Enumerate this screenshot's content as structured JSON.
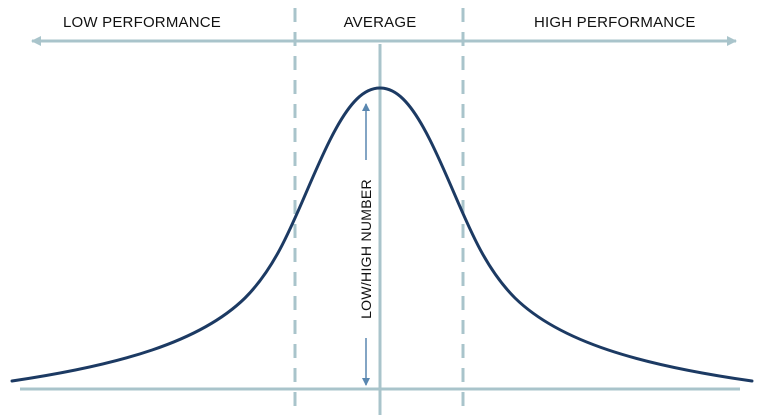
{
  "labels": {
    "low": "LOW PERFORMANCE",
    "average": "AVERAGE",
    "high": "HIGH PERFORMANCE",
    "vertical": "LOW/HIGH NUMBER"
  },
  "colors": {
    "curve": "#1c3a63",
    "axis": "#a9c4cb",
    "dashed": "#a9c4cb",
    "arrow": "#5a87b0",
    "text": "#111111"
  }
}
